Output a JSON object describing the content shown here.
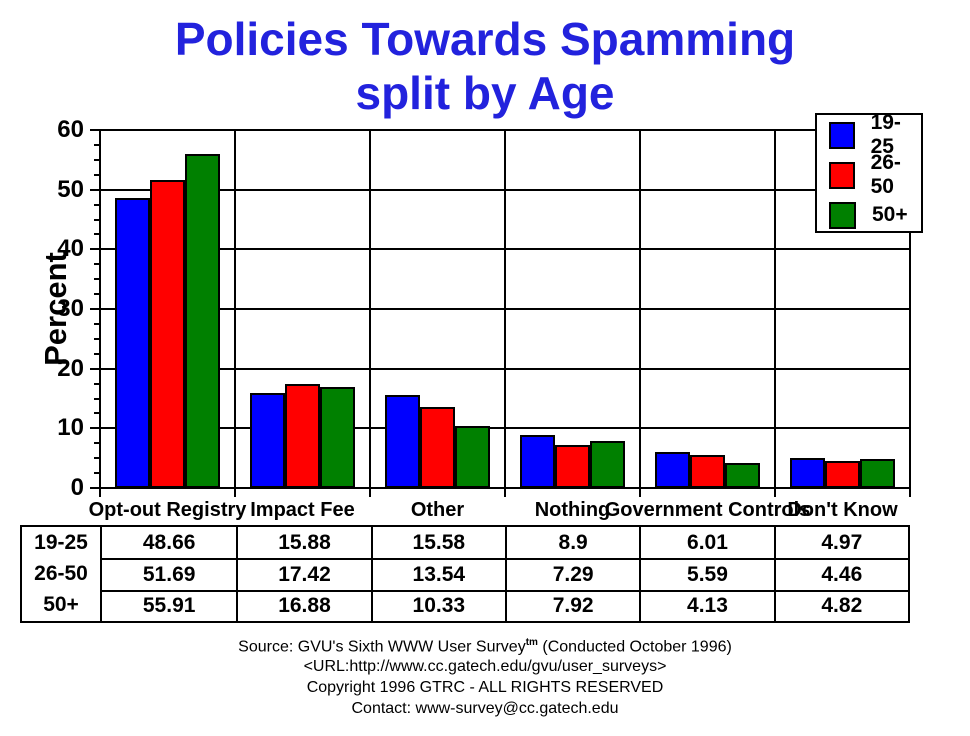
{
  "title": {
    "line1": "Policies Towards Spamming",
    "line2": "split by Age",
    "color": "#2222DD"
  },
  "chart_data": {
    "type": "bar",
    "title": "Policies Towards Spamming split by Age",
    "xlabel": "",
    "ylabel": "Percent",
    "ylim": [
      0,
      60
    ],
    "yticks": [
      0,
      10,
      20,
      30,
      40,
      50,
      60
    ],
    "minor_tick_step": 2.5,
    "grid": true,
    "legend_position": "top-right",
    "categories": [
      "Opt-out Registry",
      "Impact Fee",
      "Other",
      "Nothing",
      "Government Controls",
      "Don't Know"
    ],
    "series": [
      {
        "name": "19-25",
        "color": "#0000FF",
        "values": [
          48.66,
          15.88,
          15.58,
          8.9,
          6.01,
          4.97
        ]
      },
      {
        "name": "26-50",
        "color": "#FF0000",
        "values": [
          51.69,
          17.42,
          13.54,
          7.29,
          5.59,
          4.46
        ]
      },
      {
        "name": "50+",
        "color": "#008000",
        "values": [
          55.91,
          16.88,
          10.33,
          7.92,
          4.13,
          4.82
        ]
      }
    ]
  },
  "footer": {
    "source_prefix": "Source: GVU's Sixth WWW User Survey",
    "source_sup": "tm",
    "source_suffix": " (Conducted October 1996)",
    "url": "<URL:http://www.cc.gatech.edu/gvu/user_surveys>",
    "copyright": "Copyright 1996 GTRC - ALL RIGHTS RESERVED",
    "contact": "Contact: www-survey@cc.gatech.edu"
  },
  "colors": {
    "axis": "#000000",
    "background": "#FFFFFF"
  }
}
